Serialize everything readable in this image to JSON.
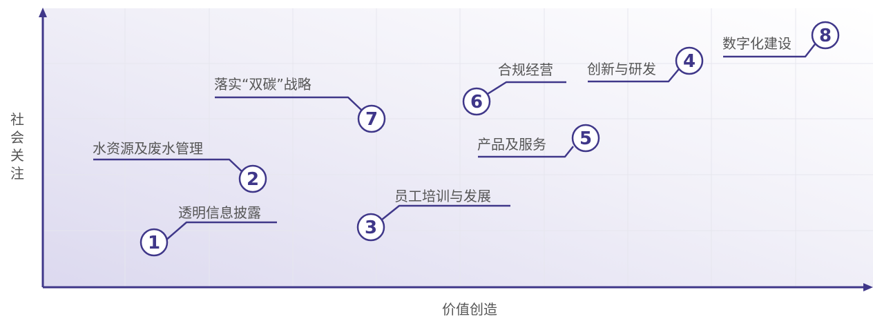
{
  "axes": {
    "x_label": "价值创造",
    "y_label": "社会关注"
  },
  "theme": {
    "accent": "#3f3789",
    "grid": "#e6e6ee",
    "label_text": "#555555"
  },
  "items": [
    {
      "id": "1",
      "label": "透明信息披露"
    },
    {
      "id": "2",
      "label": "水资源及废水管理"
    },
    {
      "id": "3",
      "label": "员工培训与发展"
    },
    {
      "id": "4",
      "label": "创新与研发"
    },
    {
      "id": "5",
      "label": "产品及服务"
    },
    {
      "id": "6",
      "label": "合规经营"
    },
    {
      "id": "7",
      "label": "落实“双碳”战略"
    },
    {
      "id": "8",
      "label": "数字化建设"
    }
  ]
}
